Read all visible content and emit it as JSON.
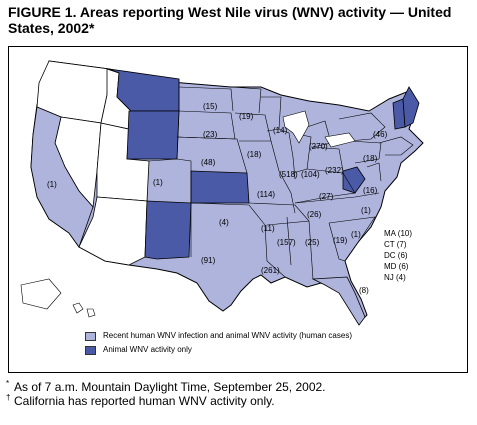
{
  "title": "FIGURE 1. Areas reporting West Nile virus (WNV) activity — United States, 2002*",
  "colors": {
    "human_and_animal": "#aeb4dc",
    "animal_only": "#4a5aa6",
    "none": "#ffffff",
    "border": "#000000"
  },
  "legend": {
    "items": [
      {
        "label": "Recent human WNV infection and animal WNV activity (human cases)",
        "color": "#aeb4dc"
      },
      {
        "label": "Animal WNV activity only",
        "color": "#4a5aa6"
      }
    ]
  },
  "state_labels": [
    {
      "state": "CA",
      "label": "(1)"
    },
    {
      "state": "SD",
      "label": "(15)"
    },
    {
      "state": "MN",
      "label": "(19)"
    },
    {
      "state": "NE",
      "label": "(23)"
    },
    {
      "state": "WI",
      "label": "(14)"
    },
    {
      "state": "MI",
      "label": "(270)"
    },
    {
      "state": "IA",
      "label": "(18)"
    },
    {
      "state": "NY",
      "label": "(46)"
    },
    {
      "state": "PA",
      "label": "(18)"
    },
    {
      "state": "CO",
      "label": "(1)"
    },
    {
      "state": "KS",
      "label": "(48)"
    },
    {
      "state": "IL",
      "label": "(518)"
    },
    {
      "state": "IN",
      "label": "(104)"
    },
    {
      "state": "OH",
      "label": "(232)"
    },
    {
      "state": "MO",
      "label": "(114)"
    },
    {
      "state": "KY",
      "label": "(27)"
    },
    {
      "state": "VA",
      "label": "(16)"
    },
    {
      "state": "OK",
      "label": "(4)"
    },
    {
      "state": "TN",
      "label": "(26)"
    },
    {
      "state": "NC",
      "label": "(1)"
    },
    {
      "state": "AR",
      "label": "(11)"
    },
    {
      "state": "SC",
      "label": "(1)"
    },
    {
      "state": "MS",
      "label": "(157)"
    },
    {
      "state": "AL",
      "label": "(25)"
    },
    {
      "state": "GA",
      "label": "(19)"
    },
    {
      "state": "TX",
      "label": "(91)"
    },
    {
      "state": "LA",
      "label": "(261)"
    },
    {
      "state": "FL",
      "label": "(8)"
    }
  ],
  "northeast_counts": [
    "MA (10)",
    "CT (7)",
    "DC (6)",
    "MD (6)",
    "NJ (4)"
  ],
  "footnotes": [
    {
      "symbol": "*",
      "text": "As of 7 a.m. Mountain Daylight Time, September 25, 2002."
    },
    {
      "symbol": "†",
      "text": "California has reported human WNV activity only."
    }
  ]
}
